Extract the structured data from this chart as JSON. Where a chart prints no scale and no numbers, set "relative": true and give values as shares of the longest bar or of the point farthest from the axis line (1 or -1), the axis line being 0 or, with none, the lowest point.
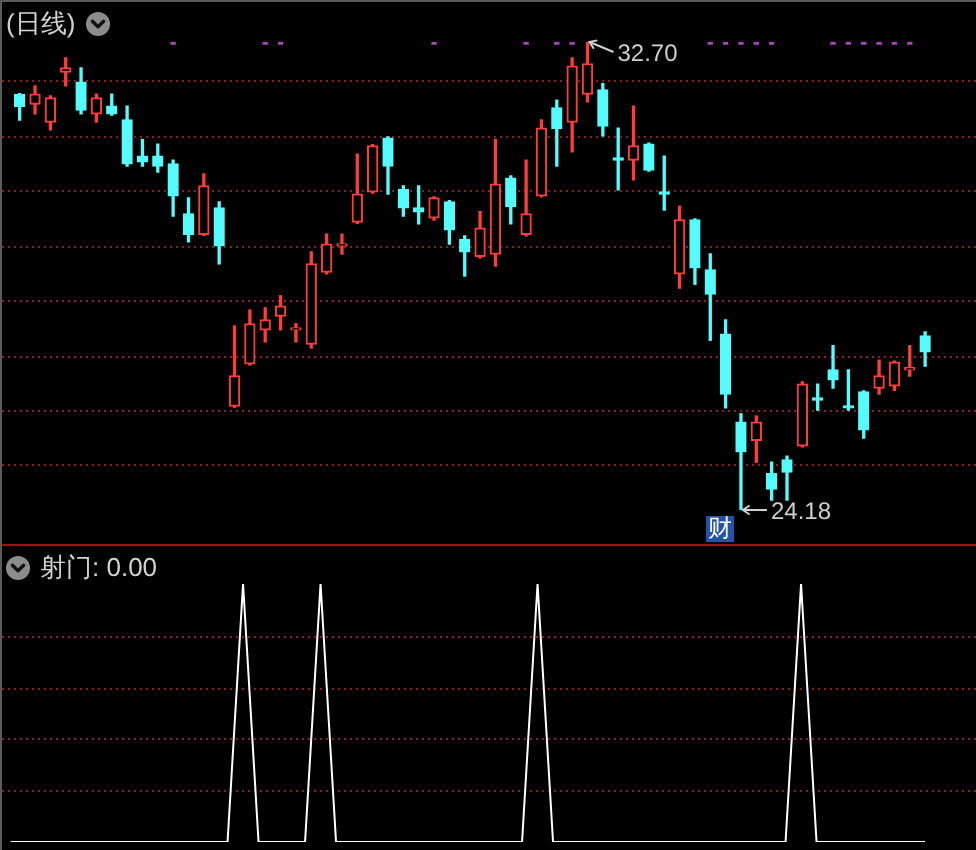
{
  "chart_data": [
    {
      "type": "candlestick",
      "title": "(日线)",
      "categories": [
        null,
        null,
        null,
        null,
        null,
        null,
        null,
        null,
        null,
        null,
        null,
        null,
        null,
        null,
        null,
        null,
        null,
        null,
        null,
        null,
        null,
        null,
        null,
        null,
        null,
        null,
        null,
        null,
        null,
        null,
        null,
        null,
        null,
        null,
        null,
        null,
        null,
        null,
        null,
        null,
        null,
        null,
        null,
        null,
        null,
        null,
        null,
        null,
        null,
        null,
        null,
        null,
        null,
        null,
        null,
        null,
        null,
        null,
        null,
        null
      ],
      "ohlc": [
        [
          31.74,
          31.76,
          31.28,
          31.53
        ],
        [
          31.57,
          31.9,
          31.39,
          31.75
        ],
        [
          31.24,
          31.72,
          31.1,
          31.68
        ],
        [
          32.15,
          32.41,
          31.9,
          32.23
        ],
        [
          31.97,
          32.23,
          31.39,
          31.46
        ],
        [
          31.39,
          31.75,
          31.24,
          31.68
        ],
        [
          31.53,
          31.75,
          31.37,
          31.39
        ],
        [
          31.28,
          31.53,
          30.44,
          30.48
        ],
        [
          30.62,
          30.92,
          30.44,
          30.52
        ],
        [
          30.62,
          30.84,
          30.33,
          30.44
        ],
        [
          30.48,
          30.55,
          29.53,
          29.9
        ],
        [
          29.57,
          29.86,
          29.06,
          29.2
        ],
        [
          29.2,
          30.3,
          29.18,
          30.08
        ],
        [
          29.68,
          29.79,
          28.66,
          28.99
        ],
        [
          26.07,
          27.53,
          26.05,
          26.62
        ],
        [
          26.84,
          27.82,
          26.82,
          27.57
        ],
        [
          27.46,
          27.86,
          27.24,
          27.64
        ],
        [
          27.71,
          28.08,
          27.46,
          27.89
        ],
        [
          27.46,
          27.57,
          27.24,
          27.49
        ],
        [
          27.2,
          28.88,
          27.13,
          28.66
        ],
        [
          28.51,
          29.2,
          28.48,
          29.02
        ],
        [
          28.99,
          29.2,
          28.84,
          29.02
        ],
        [
          29.42,
          30.66,
          29.4,
          29.93
        ],
        [
          29.97,
          30.83,
          29.95,
          30.81
        ],
        [
          30.95,
          30.97,
          29.93,
          30.44
        ],
        [
          30.01,
          30.08,
          29.53,
          29.68
        ],
        [
          29.68,
          30.08,
          29.39,
          29.61
        ],
        [
          29.5,
          29.88,
          29.46,
          29.86
        ],
        [
          29.79,
          29.81,
          29.02,
          29.28
        ],
        [
          29.1,
          29.17,
          28.44,
          28.88
        ],
        [
          28.8,
          29.61,
          28.77,
          29.31
        ],
        [
          28.84,
          30.92,
          28.62,
          30.11
        ],
        [
          30.22,
          30.26,
          29.39,
          29.71
        ],
        [
          29.2,
          30.55,
          29.17,
          29.57
        ],
        [
          29.9,
          31.28,
          29.88,
          31.13
        ],
        [
          31.5,
          31.64,
          30.44,
          31.13
        ],
        [
          31.24,
          32.41,
          30.7,
          32.26
        ],
        [
          31.75,
          32.7,
          31.61,
          32.3
        ],
        [
          31.83,
          31.94,
          30.99,
          31.17
        ],
        [
          30.59,
          31.13,
          30.01,
          30.55
        ],
        [
          30.55,
          31.53,
          30.19,
          30.81
        ],
        [
          30.84,
          30.86,
          30.35,
          30.37
        ],
        [
          29.97,
          30.62,
          29.64,
          29.93
        ],
        [
          28.48,
          29.71,
          28.22,
          29.46
        ],
        [
          29.46,
          29.48,
          28.29,
          28.59
        ],
        [
          28.55,
          28.84,
          27.27,
          28.11
        ],
        [
          27.38,
          27.64,
          26.04,
          26.29
        ],
        [
          25.78,
          25.93,
          24.18,
          25.24
        ],
        [
          25.45,
          25.89,
          25.05,
          25.78
        ],
        [
          24.84,
          25.05,
          24.36,
          24.56
        ],
        [
          25.09,
          25.16,
          24.36,
          24.87
        ],
        [
          25.35,
          26.51,
          25.33,
          26.47
        ],
        [
          26.22,
          26.47,
          26.0,
          26.18
        ],
        [
          26.73,
          27.17,
          26.4,
          26.55
        ],
        [
          26.07,
          26.73,
          26.0,
          26.04
        ],
        [
          26.33,
          26.35,
          25.49,
          25.64
        ],
        [
          26.4,
          26.91,
          26.29,
          26.62
        ],
        [
          26.44,
          26.89,
          26.36,
          26.87
        ],
        [
          26.73,
          27.17,
          26.62,
          26.77
        ],
        [
          27.35,
          27.42,
          26.8,
          27.06
        ]
      ],
      "colors": [
        "#54fcfc",
        "#ff3c3c",
        "#ff3c3c",
        "#ff3c3c",
        "#54fcfc",
        "#ff3c3c",
        "#54fcfc",
        "#54fcfc",
        "#54fcfc",
        "#54fcfc",
        "#54fcfc",
        "#54fcfc",
        "#ff3c3c",
        "#54fcfc",
        "#ff3c3c",
        "#ff3c3c",
        "#ff3c3c",
        "#ff3c3c",
        "#ff3c3c",
        "#ff3c3c",
        "#ff3c3c",
        "#ff3c3c",
        "#ff3c3c",
        "#ff3c3c",
        "#54fcfc",
        "#54fcfc",
        "#54fcfc",
        "#ff3c3c",
        "#54fcfc",
        "#54fcfc",
        "#ff3c3c",
        "#ff3c3c",
        "#54fcfc",
        "#ff3c3c",
        "#ff3c3c",
        "#54fcfc",
        "#ff3c3c",
        "#ff3c3c",
        "#54fcfc",
        "#54fcfc",
        "#ff3c3c",
        "#54fcfc",
        "#54fcfc",
        "#ff3c3c",
        "#54fcfc",
        "#54fcfc",
        "#54fcfc",
        "#54fcfc",
        "#ff3c3c",
        "#54fcfc",
        "#54fcfc",
        "#ff3c3c",
        "#54fcfc",
        "#54fcfc",
        "#54fcfc",
        "#54fcfc",
        "#ff3c3c",
        "#ff3c3c",
        "#ff3c3c",
        "#54fcfc"
      ],
      "series": [
        {
          "type": "scatter",
          "color": "#b040c0",
          "values": [
            null,
            null,
            null,
            null,
            null,
            null,
            null,
            null,
            null,
            null,
            32.7,
            null,
            null,
            null,
            null,
            null,
            32.7,
            32.7,
            null,
            null,
            null,
            null,
            null,
            null,
            null,
            null,
            null,
            32.7,
            null,
            null,
            null,
            null,
            null,
            32.7,
            null,
            32.7,
            32.7,
            null,
            null,
            null,
            null,
            null,
            null,
            null,
            null,
            32.7,
            32.7,
            32.7,
            32.7,
            32.7,
            null,
            null,
            null,
            32.7,
            32.7,
            32.7,
            32.7,
            32.7,
            32.7,
            null
          ]
        }
      ],
      "yticks": [
        {
          "value": 25,
          "label": null
        },
        {
          "value": 26,
          "label": null
        },
        {
          "value": 27,
          "label": null
        },
        {
          "value": 28,
          "label": null
        },
        {
          "value": 29,
          "label": null
        },
        {
          "value": 30,
          "label": null
        },
        {
          "value": 31,
          "label": null
        },
        {
          "value": 32,
          "label": null
        }
      ],
      "tick_labels": false,
      "marker": "square",
      "grid": true,
      "annotations": [
        "32.70",
        "24.18",
        "财"
      ]
    },
    {
      "type": "line",
      "title": "射门: 0.00",
      "relative": true,
      "categories": [
        null,
        null,
        null,
        null,
        null,
        null,
        null,
        null,
        null,
        null,
        null,
        null,
        null,
        null,
        null,
        null,
        null,
        null,
        null,
        null,
        null,
        null,
        null,
        null,
        null,
        null,
        null,
        null,
        null,
        null,
        null,
        null,
        null,
        null,
        null,
        null,
        null,
        null,
        null,
        null,
        null,
        null,
        null,
        null,
        null,
        null,
        null,
        null,
        null,
        null,
        null,
        null,
        null,
        null,
        null,
        null,
        null,
        null,
        null,
        null
      ],
      "series": [
        {
          "color": "#ffffff",
          "values": [
            0,
            0,
            0,
            0,
            0,
            0,
            0,
            0,
            0,
            0,
            0,
            0,
            0,
            0,
            0,
            1,
            0,
            0,
            0,
            0,
            1,
            0,
            0,
            0,
            0,
            0,
            0,
            0,
            0,
            0,
            0,
            0,
            0,
            0,
            1,
            0,
            0,
            0,
            0,
            0,
            0,
            0,
            0,
            0,
            0,
            0,
            0,
            0,
            0,
            0,
            0,
            1,
            0,
            0,
            0,
            0,
            0,
            0,
            0,
            0
          ]
        }
      ],
      "ref_lines": [
        {
          "axis": "y",
          "value": 0.2,
          "color": "#8e1e1e",
          "line_style": "dotted"
        },
        {
          "axis": "y",
          "value": 0.4,
          "color": "#8e1e1e",
          "line_style": "dotted"
        },
        {
          "axis": "y",
          "value": 0.6,
          "color": "#8e1e1e",
          "line_style": "dotted"
        },
        {
          "axis": "y",
          "value": 0.8,
          "color": "#8e1e1e",
          "line_style": "dotted"
        }
      ],
      "tick_labels": false
    }
  ]
}
